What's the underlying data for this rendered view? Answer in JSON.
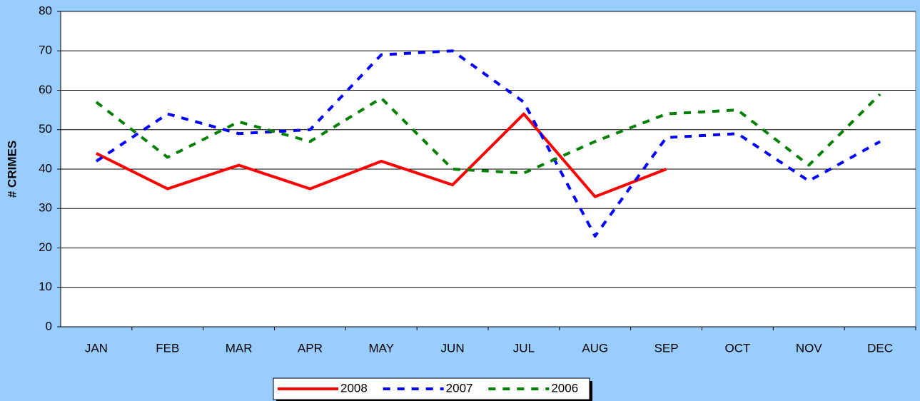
{
  "chart_data": {
    "type": "line",
    "y_label": "# CRIMES",
    "categories": [
      "JAN",
      "FEB",
      "MAR",
      "APR",
      "MAY",
      "JUN",
      "JUL",
      "AUG",
      "SEP",
      "OCT",
      "NOV",
      "DEC"
    ],
    "series": [
      {
        "name": "2008",
        "color": "#ff0000",
        "dashed": false,
        "values": [
          44,
          35,
          41,
          35,
          42,
          36,
          54,
          33,
          40,
          null,
          null,
          null
        ]
      },
      {
        "name": "2007",
        "color": "#0000ff",
        "dashed": true,
        "values": [
          42,
          54,
          49,
          50,
          69,
          70,
          57,
          23,
          48,
          49,
          37,
          47
        ]
      },
      {
        "name": "2006",
        "color": "#008000",
        "dashed": true,
        "values": [
          57,
          43,
          52,
          47,
          58,
          40,
          39,
          47,
          54,
          55,
          41,
          59
        ]
      }
    ],
    "ylim": [
      0,
      80
    ],
    "yticks": [
      0,
      10,
      20,
      30,
      40,
      50,
      60,
      70,
      80
    ],
    "grid": true,
    "legend": "bottom"
  }
}
